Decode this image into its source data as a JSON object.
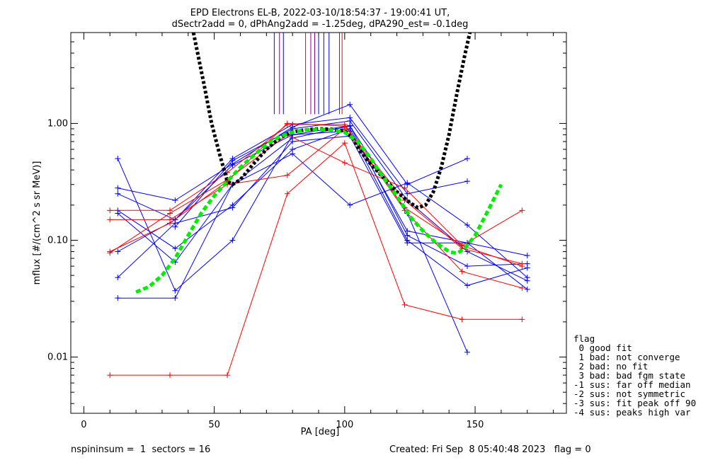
{
  "title_line1": "EPD Electrons EL-B, 2022-03-10/18:54:37 - 19:00:41 UT,",
  "title_line2": "dSectr2add = 0, dPhAng2add = -1.25deg, dPA290_est=  -0.1deg",
  "legend": {
    "header": "flag",
    "items": [
      " 0 good fit",
      " 1 bad: not converge",
      " 2 bad: no fit",
      " 3 bad: bad fgm state",
      "-1 sus: far off median",
      "-2 sus: not symmetric",
      "-3 sus: fit peak off 90",
      "-4 sus: peaks high var"
    ]
  },
  "footer": {
    "left": "nspininsum =  1  sectors = 16",
    "right": "Created: Fri Sep  8 05:40:48 2023   flag = 0"
  },
  "colors": {
    "blue": "#0000ff",
    "red": "#ff0000",
    "black": "#000000",
    "green": "#00ee00",
    "purple": "#8b008b"
  },
  "chart_data": {
    "type": "line",
    "xlabel": "PA [deg]",
    "ylabel": "mflux [#/(cm^2 s sr MeV)]",
    "xlim": [
      -5,
      185
    ],
    "ylim": [
      0.0033,
      6
    ],
    "yscale": "log",
    "xticks": [
      0,
      50,
      100,
      150
    ],
    "xtick_labels": [
      "0",
      "50",
      "100",
      "150"
    ],
    "yticks": [
      0.01,
      0.1,
      1.0
    ],
    "ytick_labels": [
      "0.01",
      "0.10",
      "1.00"
    ],
    "series": [
      {
        "color": "blue",
        "points": [
          [
            13,
            0.28
          ],
          [
            35,
            0.22
          ],
          [
            57,
            0.45
          ],
          [
            80,
            0.93
          ],
          [
            102,
            1.45
          ],
          [
            124,
            0.3
          ],
          [
            147,
            0.5
          ]
        ]
      },
      {
        "color": "blue",
        "points": [
          [
            13,
            0.25
          ],
          [
            35,
            0.15
          ],
          [
            57,
            0.5
          ],
          [
            80,
            0.98
          ],
          [
            102,
            1.12
          ],
          [
            124,
            0.25
          ],
          [
            147,
            0.32
          ]
        ]
      },
      {
        "color": "blue",
        "points": [
          [
            13,
            0.18
          ],
          [
            35,
            0.085
          ],
          [
            57,
            0.2
          ],
          [
            80,
            0.6
          ],
          [
            102,
            0.9
          ],
          [
            124,
            0.12
          ],
          [
            147,
            0.095
          ],
          [
            170,
            0.038
          ]
        ]
      },
      {
        "color": "blue",
        "points": [
          [
            13,
            0.08
          ],
          [
            35,
            0.15
          ],
          [
            57,
            0.44
          ],
          [
            80,
            0.8
          ],
          [
            102,
            0.86
          ],
          [
            124,
            0.1
          ],
          [
            147,
            0.041
          ],
          [
            170,
            0.058
          ]
        ]
      },
      {
        "color": "blue",
        "points": [
          [
            13,
            0.048
          ],
          [
            35,
            0.14
          ],
          [
            57,
            0.19
          ],
          [
            80,
            0.7
          ],
          [
            102,
            0.78
          ],
          [
            124,
            0.095
          ],
          [
            147,
            0.095
          ],
          [
            170,
            0.074
          ]
        ]
      },
      {
        "color": "blue",
        "points": [
          [
            13,
            0.032
          ],
          [
            35,
            0.032
          ],
          [
            57,
            0.3
          ],
          [
            80,
            0.55
          ],
          [
            102,
            0.2
          ],
          [
            124,
            0.31
          ],
          [
            147,
            0.135
          ],
          [
            170,
            0.048
          ]
        ]
      },
      {
        "color": "blue",
        "points": [
          [
            13,
            0.17
          ],
          [
            35,
            0.065
          ],
          [
            57,
            0.3
          ],
          [
            80,
            0.75
          ],
          [
            102,
            0.95
          ],
          [
            124,
            0.17
          ],
          [
            147,
            0.011
          ]
        ]
      },
      {
        "color": "blue",
        "points": [
          [
            13,
            0.5
          ],
          [
            35,
            0.037
          ],
          [
            57,
            0.1
          ],
          [
            80,
            0.8
          ],
          [
            102,
            0.96
          ],
          [
            124,
            0.11
          ],
          [
            147,
            0.06
          ],
          [
            170,
            0.063
          ]
        ]
      },
      {
        "color": "blue",
        "points": [
          [
            35,
            0.13
          ],
          [
            57,
            0.48
          ],
          [
            80,
            0.9
          ],
          [
            102,
            1.05
          ],
          [
            124,
            0.22
          ],
          [
            147,
            0.08
          ],
          [
            170,
            0.045
          ]
        ]
      },
      {
        "color": "red",
        "points": [
          [
            10,
            0.007
          ],
          [
            33,
            0.007
          ],
          [
            55,
            0.007
          ],
          [
            78,
            0.25
          ],
          [
            100,
            0.68
          ],
          [
            123,
            0.028
          ],
          [
            145,
            0.021
          ],
          [
            168,
            0.021
          ]
        ]
      },
      {
        "color": "red",
        "points": [
          [
            10,
            0.18
          ],
          [
            33,
            0.18
          ],
          [
            55,
            0.38
          ],
          [
            78,
            0.98
          ],
          [
            100,
            0.98
          ],
          [
            123,
            0.18
          ],
          [
            145,
            0.054
          ],
          [
            168,
            0.039
          ]
        ]
      },
      {
        "color": "red",
        "points": [
          [
            10,
            0.15
          ],
          [
            33,
            0.15
          ],
          [
            55,
            0.3
          ],
          [
            78,
            0.36
          ],
          [
            100,
            0.9
          ],
          [
            123,
            0.19
          ],
          [
            145,
            0.09
          ],
          [
            168,
            0.18
          ]
        ]
      },
      {
        "color": "red",
        "points": [
          [
            10,
            0.078
          ],
          [
            33,
            0.17
          ],
          [
            55,
            0.33
          ],
          [
            78,
            0.8
          ],
          [
            100,
            0.46
          ],
          [
            123,
            0.28
          ],
          [
            145,
            0.09
          ],
          [
            168,
            0.06
          ]
        ]
      },
      {
        "color": "red",
        "points": [
          [
            10,
            0.08
          ],
          [
            33,
            0.14
          ],
          [
            55,
            0.32
          ],
          [
            78,
            1.0
          ],
          [
            100,
            0.95
          ],
          [
            123,
            0.22
          ],
          [
            145,
            0.085
          ],
          [
            168,
            0.063
          ]
        ]
      }
    ],
    "fits": [
      {
        "color": "black",
        "style": "dotted-thick",
        "points": [
          [
            42,
            6
          ],
          [
            46,
            2.2
          ],
          [
            49,
            1.0
          ],
          [
            52,
            0.55
          ],
          [
            55,
            0.32
          ],
          [
            57,
            0.3
          ],
          [
            60,
            0.33
          ],
          [
            65,
            0.45
          ],
          [
            70,
            0.6
          ],
          [
            75,
            0.75
          ],
          [
            80,
            0.85
          ],
          [
            85,
            0.88
          ],
          [
            90,
            0.9
          ],
          [
            95,
            0.89
          ],
          [
            100,
            0.86
          ],
          [
            103,
            0.75
          ],
          [
            106,
            0.58
          ],
          [
            110,
            0.45
          ],
          [
            115,
            0.34
          ],
          [
            120,
            0.26
          ],
          [
            125,
            0.21
          ],
          [
            128,
            0.19
          ],
          [
            131,
            0.2
          ],
          [
            134,
            0.26
          ],
          [
            137,
            0.42
          ],
          [
            140,
            0.8
          ],
          [
            143,
            1.8
          ],
          [
            146,
            3.8
          ],
          [
            148,
            6
          ]
        ]
      },
      {
        "color": "green",
        "style": "dashed-thick",
        "points": [
          [
            20,
            0.036
          ],
          [
            25,
            0.04
          ],
          [
            30,
            0.05
          ],
          [
            35,
            0.07
          ],
          [
            40,
            0.11
          ],
          [
            45,
            0.17
          ],
          [
            50,
            0.24
          ],
          [
            55,
            0.32
          ],
          [
            60,
            0.42
          ],
          [
            65,
            0.53
          ],
          [
            70,
            0.66
          ],
          [
            75,
            0.77
          ],
          [
            80,
            0.84
          ],
          [
            85,
            0.88
          ],
          [
            90,
            0.89
          ],
          [
            95,
            0.88
          ],
          [
            100,
            0.84
          ],
          [
            105,
            0.7
          ],
          [
            110,
            0.5
          ],
          [
            115,
            0.34
          ],
          [
            120,
            0.24
          ],
          [
            125,
            0.16
          ],
          [
            130,
            0.12
          ],
          [
            135,
            0.095
          ],
          [
            140,
            0.08
          ],
          [
            143,
            0.077
          ],
          [
            146,
            0.085
          ],
          [
            150,
            0.11
          ],
          [
            155,
            0.18
          ],
          [
            160,
            0.3
          ]
        ]
      }
    ],
    "vlines": [
      {
        "x": 73,
        "color": "blue"
      },
      {
        "x": 75,
        "color": "purple"
      },
      {
        "x": 76.5,
        "color": "blue"
      },
      {
        "x": 85,
        "color": "red"
      },
      {
        "x": 87,
        "color": "purple"
      },
      {
        "x": 88.5,
        "color": "purple"
      },
      {
        "x": 90,
        "color": "blue"
      },
      {
        "x": 92,
        "color": "blue"
      },
      {
        "x": 94,
        "color": "blue"
      },
      {
        "x": 98,
        "color": "purple"
      },
      {
        "x": 99,
        "color": "red"
      }
    ],
    "vline_range": [
      1.2,
      6
    ]
  }
}
